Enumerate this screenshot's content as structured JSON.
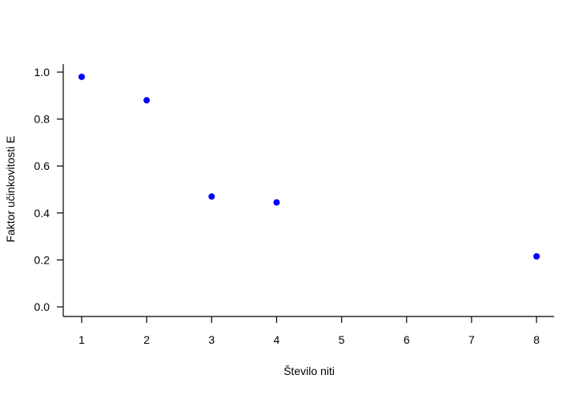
{
  "chart_data": {
    "type": "scatter",
    "title": "",
    "xlabel": "Število niti",
    "ylabel": "Faktor učinkovitosti E",
    "x": [
      1,
      2,
      3,
      4,
      8
    ],
    "y": [
      0.98,
      0.88,
      0.47,
      0.445,
      0.215
    ],
    "xlim": [
      1,
      8
    ],
    "ylim": [
      0,
      1
    ],
    "xticks": [
      1,
      2,
      3,
      4,
      5,
      6,
      7,
      8
    ],
    "xtick_labels": [
      "1",
      "2",
      "3",
      "4",
      "5",
      "6",
      "7",
      "8"
    ],
    "yticks": [
      0,
      0.2,
      0.4,
      0.6,
      0.8,
      1.0
    ],
    "ytick_labels": [
      "0.0",
      "0.2",
      "0.4",
      "0.6",
      "0.8",
      "1.0"
    ],
    "grid": false,
    "legend": "none",
    "point_color": "#0000ff"
  }
}
